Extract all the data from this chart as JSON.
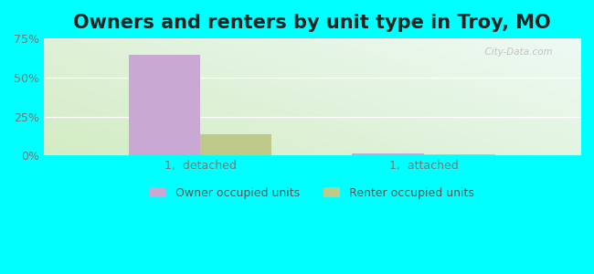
{
  "title": "Owners and renters by unit type in Troy, MO",
  "categories": [
    "1,  detached",
    "1,  attached"
  ],
  "owner_values": [
    64.5,
    1.5
  ],
  "renter_values": [
    13.5,
    0.8
  ],
  "owner_color": "#c9a8d4",
  "renter_color": "#bfc98a",
  "ylim": [
    0,
    75
  ],
  "yticks": [
    0,
    25,
    50,
    75
  ],
  "yticklabels": [
    "0%",
    "25%",
    "50%",
    "75%"
  ],
  "bar_width": 0.32,
  "outer_bg": "#00ffff",
  "title_fontsize": 15,
  "watermark": "  City-Data.com",
  "grid_color": "#ddddcc",
  "tick_color": "#777777"
}
